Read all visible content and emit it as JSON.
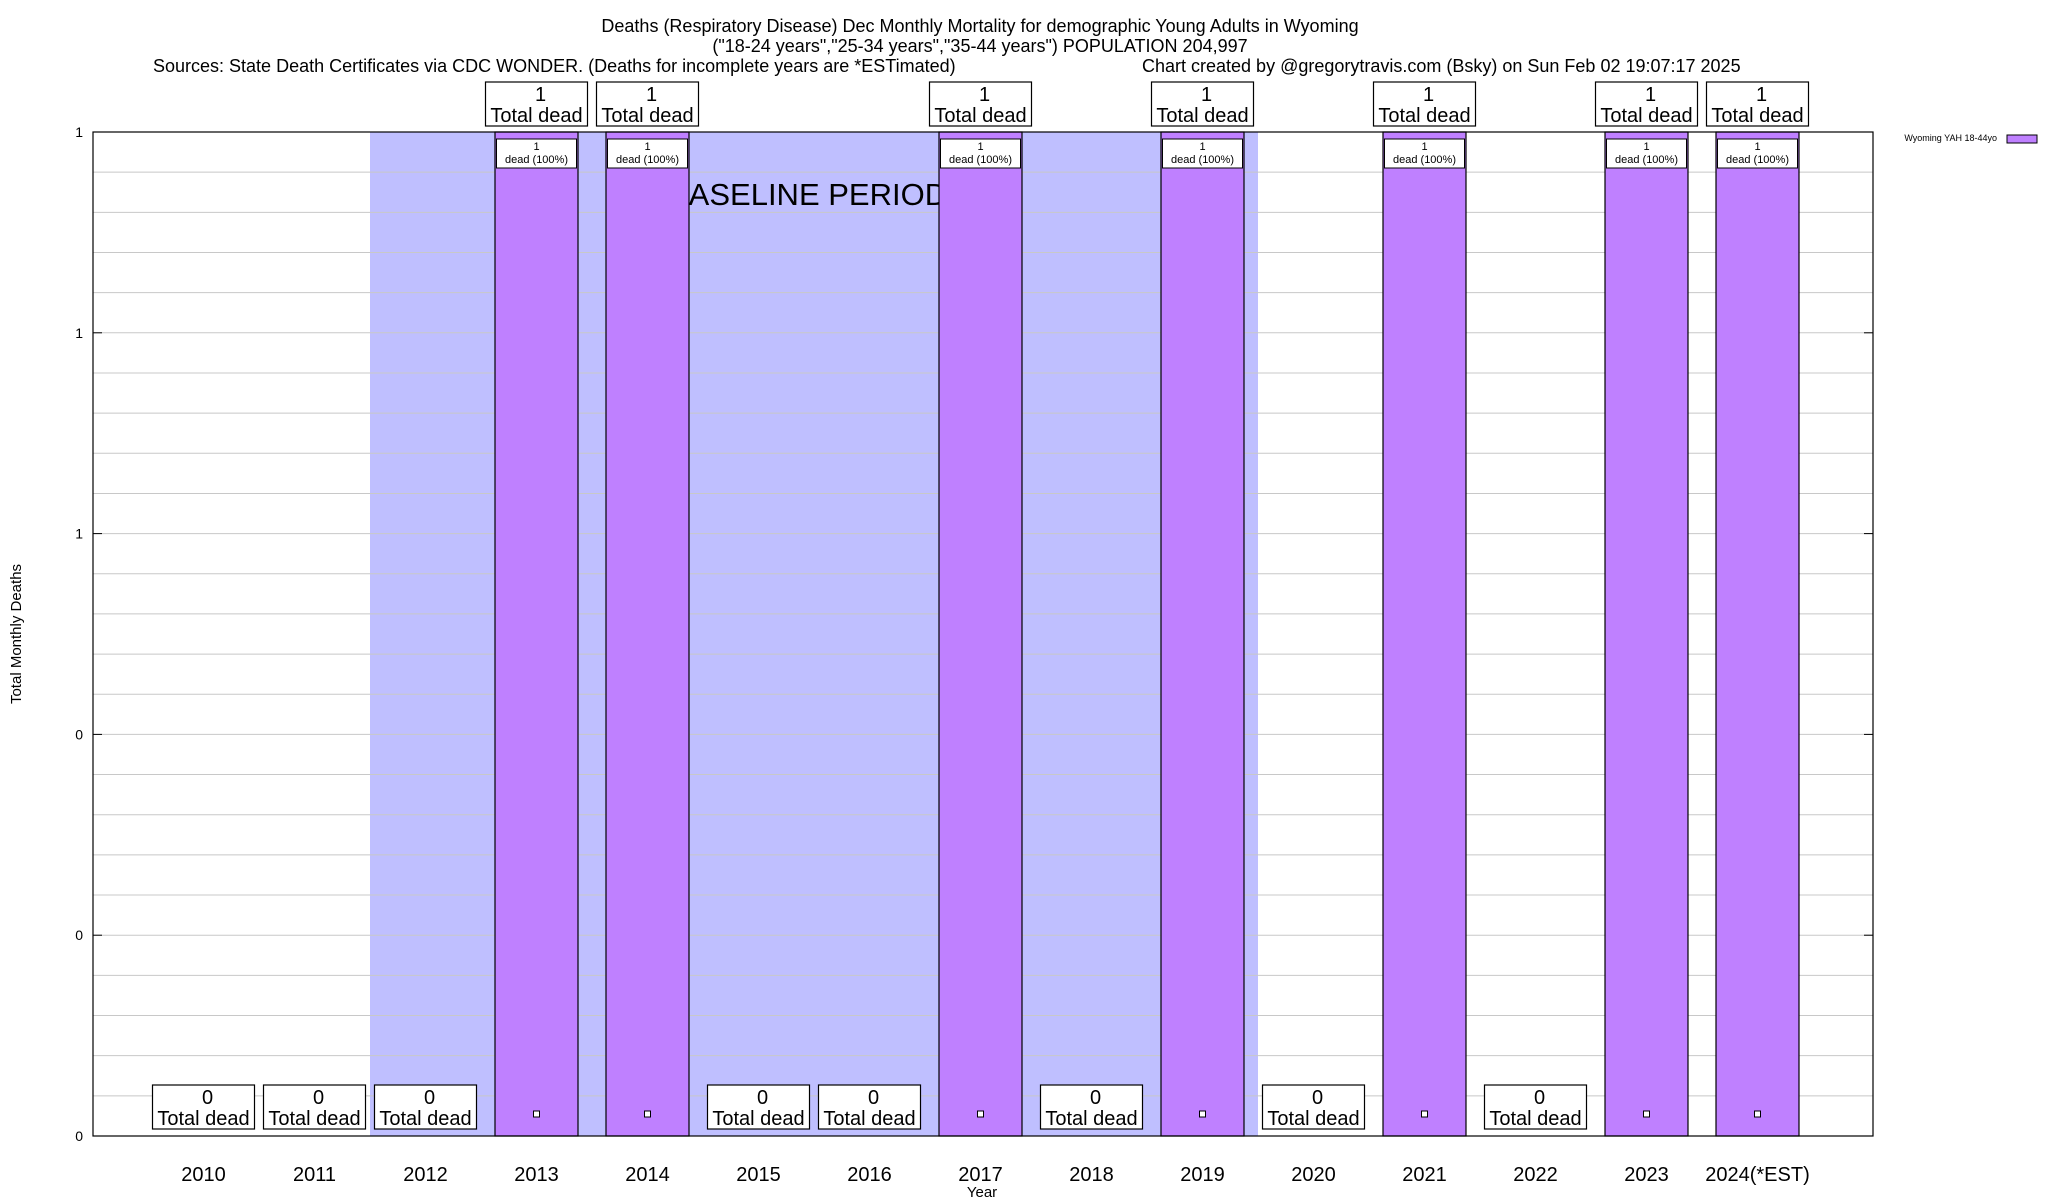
{
  "chart_data": {
    "type": "bar",
    "title_lines": [
      "Deaths (Respiratory Disease) Dec Monthly Mortality for demographic Young Adults in Wyoming",
      "(\"18-24 years\",\"25-34 years\",\"35-44 years\") POPULATION 204,997"
    ],
    "sources": "Sources: State Death Certificates via CDC WONDER. (Deaths for incomplete years are *ESTimated)",
    "credit": "Chart created by @gregorytravis.com (Bsky) on Sun Feb 02 19:07:17 2025",
    "xlabel": "Year",
    "ylabel": "Total Monthly Deaths",
    "categories": [
      "2010",
      "2011",
      "2012",
      "2013",
      "2014",
      "2015",
      "2016",
      "2017",
      "2018",
      "2019",
      "2020",
      "2021",
      "2022",
      "2023",
      "2024(*EST)"
    ],
    "series": [
      {
        "name": "Wyoming YAH 18-44yo",
        "color": "#bf80ff",
        "values": [
          0,
          0,
          0,
          1,
          1,
          0,
          0,
          1,
          0,
          1,
          0,
          1,
          0,
          1,
          1
        ]
      }
    ],
    "ylim": [
      0,
      1
    ],
    "ytick_labels": [
      "0",
      "0",
      "0",
      "1",
      "1",
      "1"
    ],
    "total_label": "Total dead",
    "inner_label": "dead (100%)",
    "inner_count": "1",
    "baseline_label": "BASELINE PERIOD",
    "baseline_color": "#bfbfff",
    "grid": true,
    "legend_position": "top-right"
  }
}
